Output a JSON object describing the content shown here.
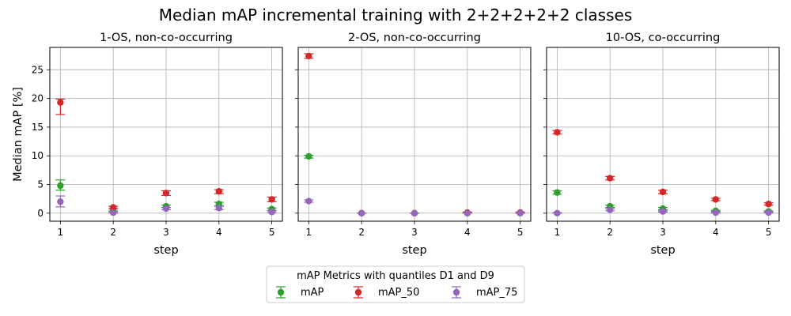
{
  "figure": {
    "title": "Median mAP incremental training with 2+2+2+2+2 classes"
  },
  "legend": {
    "title": "mAP Metrics with quantiles D1 and D9",
    "location": "lower-center",
    "entries": [
      {
        "name": "mAP",
        "color": "#2ca02c"
      },
      {
        "name": "mAP_50",
        "color": "#d62728"
      },
      {
        "name": "mAP_75",
        "color": "#9467bd"
      }
    ]
  },
  "chart_data": [
    {
      "type": "scatter",
      "title": "1-OS, non-co-occurring",
      "xlabel": "step",
      "ylabel": "Median mAP [%]",
      "x": [
        1,
        2,
        3,
        4,
        5
      ],
      "xlim": [
        0.8,
        5.2
      ],
      "ylim": [
        -1.4,
        28.9
      ],
      "xticks": [
        "1",
        "2",
        "3",
        "4",
        "5"
      ],
      "yticks": [
        "0",
        "5",
        "10",
        "15",
        "20",
        "25"
      ],
      "grid": true,
      "series": [
        {
          "name": "mAP",
          "color": "#2ca02c",
          "values": [
            4.8,
            0.6,
            1.2,
            1.6,
            0.7
          ],
          "lower": [
            4.0,
            0.4,
            1.0,
            1.3,
            0.5
          ],
          "upper": [
            5.8,
            0.8,
            1.4,
            1.9,
            0.9
          ]
        },
        {
          "name": "mAP_50",
          "color": "#d62728",
          "values": [
            19.3,
            1.0,
            3.5,
            3.8,
            2.4
          ],
          "lower": [
            17.2,
            0.8,
            3.1,
            3.4,
            2.0
          ],
          "upper": [
            19.9,
            1.2,
            3.9,
            4.1,
            2.8
          ]
        },
        {
          "name": "mAP_75",
          "color": "#9467bd",
          "values": [
            2.0,
            0.1,
            0.8,
            0.9,
            0.2
          ],
          "lower": [
            1.1,
            0.0,
            0.6,
            0.6,
            0.1
          ],
          "upper": [
            3.0,
            0.2,
            1.0,
            1.2,
            0.4
          ]
        }
      ]
    },
    {
      "type": "scatter",
      "title": "2-OS, non-co-occurring",
      "xlabel": "step",
      "ylabel": "",
      "x": [
        1,
        2,
        3,
        4,
        5
      ],
      "xlim": [
        0.8,
        5.2
      ],
      "ylim": [
        -1.4,
        28.9
      ],
      "xticks": [
        "1",
        "2",
        "3",
        "4",
        "5"
      ],
      "yticks": [
        "0",
        "5",
        "10",
        "15",
        "20",
        "25"
      ],
      "grid": true,
      "series": [
        {
          "name": "mAP",
          "color": "#2ca02c",
          "values": [
            9.9,
            0.0,
            0.0,
            0.0,
            0.0
          ],
          "lower": [
            9.6,
            0.0,
            0.0,
            0.0,
            0.0
          ],
          "upper": [
            10.1,
            0.0,
            0.0,
            0.0,
            0.0
          ]
        },
        {
          "name": "mAP_50",
          "color": "#d62728",
          "values": [
            27.4,
            0.0,
            0.0,
            0.1,
            0.1
          ],
          "lower": [
            27.0,
            0.0,
            0.0,
            0.0,
            0.0
          ],
          "upper": [
            27.8,
            0.0,
            0.0,
            0.2,
            0.2
          ]
        },
        {
          "name": "mAP_75",
          "color": "#9467bd",
          "values": [
            2.1,
            0.0,
            0.0,
            0.0,
            0.0
          ],
          "lower": [
            1.9,
            0.0,
            0.0,
            0.0,
            0.0
          ],
          "upper": [
            2.3,
            0.0,
            0.0,
            0.0,
            0.0
          ]
        }
      ]
    },
    {
      "type": "scatter",
      "title": "10-OS, co-occurring",
      "xlabel": "step",
      "ylabel": "",
      "x": [
        1,
        2,
        3,
        4,
        5
      ],
      "xlim": [
        0.8,
        5.2
      ],
      "ylim": [
        -1.4,
        28.9
      ],
      "xticks": [
        "1",
        "2",
        "3",
        "4",
        "5"
      ],
      "yticks": [
        "0",
        "5",
        "10",
        "15",
        "20",
        "25"
      ],
      "grid": true,
      "series": [
        {
          "name": "mAP",
          "color": "#2ca02c",
          "values": [
            3.6,
            1.2,
            0.8,
            0.4,
            0.3
          ],
          "lower": [
            3.3,
            1.0,
            0.6,
            0.3,
            0.2
          ],
          "upper": [
            3.9,
            1.4,
            1.0,
            0.5,
            0.4
          ]
        },
        {
          "name": "mAP_50",
          "color": "#d62728",
          "values": [
            14.1,
            6.1,
            3.7,
            2.4,
            1.6
          ],
          "lower": [
            13.8,
            5.8,
            3.4,
            2.2,
            1.4
          ],
          "upper": [
            14.4,
            6.4,
            4.0,
            2.6,
            1.8
          ]
        },
        {
          "name": "mAP_75",
          "color": "#9467bd",
          "values": [
            0.0,
            0.6,
            0.3,
            0.1,
            0.1
          ],
          "lower": [
            0.0,
            0.4,
            0.2,
            0.0,
            0.0
          ],
          "upper": [
            0.1,
            0.8,
            0.4,
            0.2,
            0.2
          ]
        }
      ]
    }
  ]
}
